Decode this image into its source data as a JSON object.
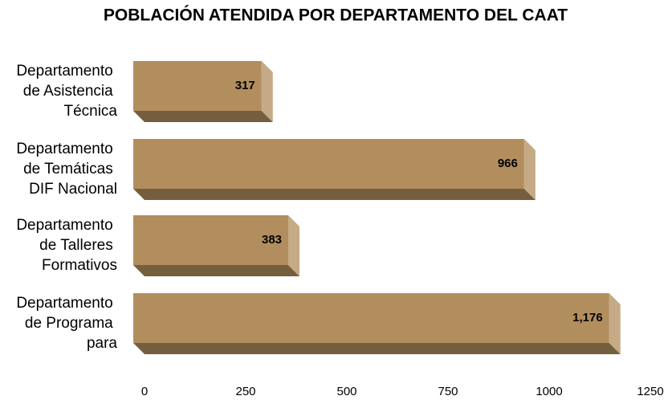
{
  "chart_data": {
    "type": "barh",
    "title": "POBLACIÓN ATENDIDA POR DEPARTAMENTO DEL CAAT",
    "categories": [
      "Departamento de Asistencia Técnica",
      "Departamento de Temáticas DIF Nacional",
      "Departamento de Talleres Formativos",
      "Departamento de Programa para"
    ],
    "values": [
      317,
      966,
      383,
      1176
    ],
    "value_labels": [
      "317",
      "966",
      "383",
      "1,176"
    ],
    "color": "#b28e5e",
    "xlim": [
      0,
      1250
    ],
    "xticks": [
      0,
      250,
      500,
      750,
      1000,
      1250
    ],
    "grid": false
  }
}
